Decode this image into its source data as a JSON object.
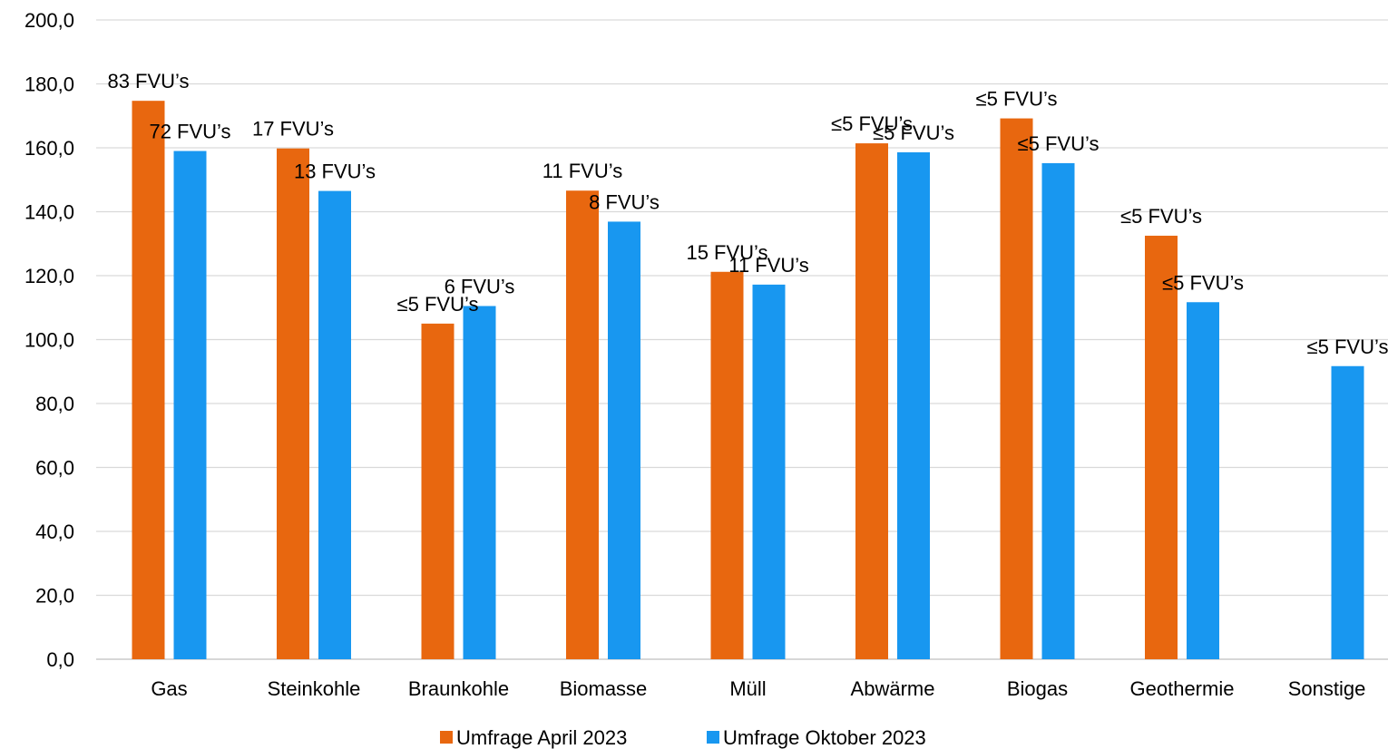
{
  "chart_data": {
    "type": "bar",
    "title": "",
    "xlabel": "",
    "ylabel": "",
    "ylim": [
      0,
      200
    ],
    "y_ticks": [
      "0,0",
      "20,0",
      "40,0",
      "60,0",
      "80,0",
      "100,0",
      "120,0",
      "140,0",
      "160,0",
      "180,0",
      "200,0"
    ],
    "grid": true,
    "legend_position": "bottom",
    "categories": [
      "Gas",
      "Steinkohle",
      "Braunkohle",
      "Biomasse",
      "Müll",
      "Abwärme",
      "Biogas",
      "Geothermie",
      "Sonstige"
    ],
    "series": [
      {
        "name": "Umfrage April 2023",
        "color": "#e8670f",
        "values": [
          174.7,
          159.8,
          105.0,
          146.6,
          121.2,
          161.4,
          169.2,
          132.5,
          null
        ],
        "labels": [
          "83 FVU’s",
          "17 FVU’s",
          "≤5 FVU’s",
          "11 FVU’s",
          "15 FVU’s",
          "≤5 FVU’s",
          "≤5 FVU’s",
          "≤5 FVU’s",
          ""
        ]
      },
      {
        "name": "Umfrage Oktober 2023",
        "color": "#1897f0",
        "values": [
          159.0,
          146.5,
          110.5,
          136.9,
          117.2,
          158.6,
          155.2,
          111.7,
          91.7
        ],
        "labels": [
          "72 FVU’s",
          "13 FVU’s",
          "6 FVU’s",
          "8 FVU’s",
          "11 FVU’s",
          "≤5 FVU’s",
          "≤5 FVU’s",
          "≤5 FVU’s",
          "≤5 FVU’s"
        ]
      }
    ]
  }
}
